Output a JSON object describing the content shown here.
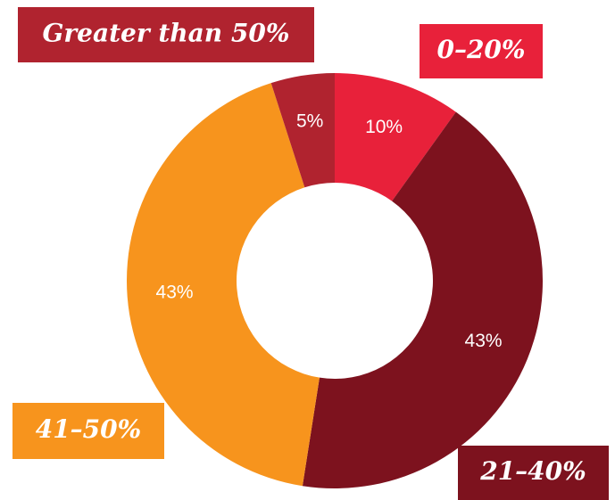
{
  "chart_data": {
    "type": "donut",
    "categories": [
      "0–20%",
      "21–40%",
      "41–50%",
      "Greater than 50%"
    ],
    "values": [
      10,
      43,
      43,
      5
    ],
    "value_labels": [
      "10%",
      "43%",
      "43%",
      "5%"
    ],
    "colors": [
      "#e8213a",
      "#7d121e",
      "#f7941d",
      "#b0232f"
    ]
  }
}
